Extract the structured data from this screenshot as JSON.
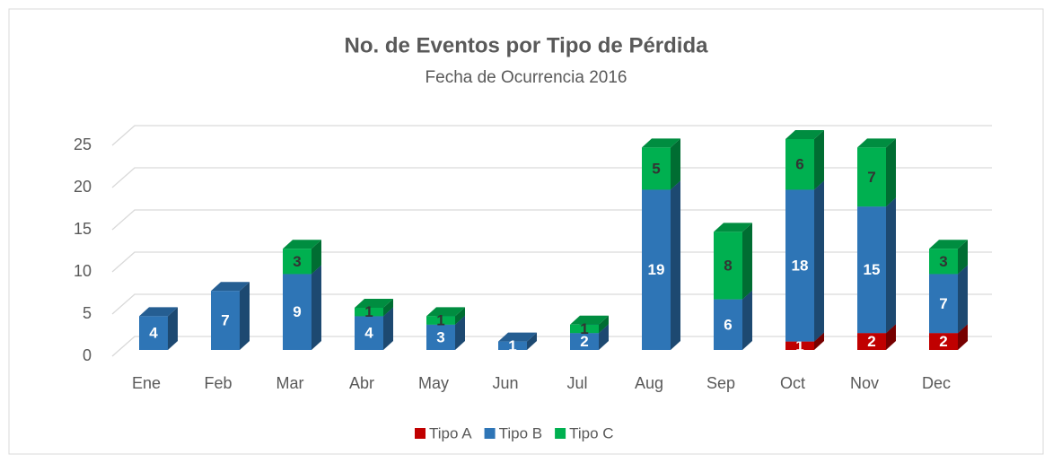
{
  "chart_data": {
    "type": "bar3d_stacked",
    "title": "No. de Eventos por Tipo de Pérdida",
    "subtitle": "Fecha de Ocurrencia 2016",
    "categories": [
      "Ene",
      "Feb",
      "Mar",
      "Abr",
      "May",
      "Jun",
      "Jul",
      "Aug",
      "Sep",
      "Oct",
      "Nov",
      "Dec"
    ],
    "series": [
      {
        "name": "Tipo A",
        "color": "#c00000",
        "values": [
          null,
          null,
          null,
          null,
          null,
          null,
          null,
          null,
          null,
          1,
          2,
          2
        ]
      },
      {
        "name": "Tipo B",
        "color": "#2e75b6",
        "values": [
          4,
          7,
          9,
          4,
          3,
          1,
          2,
          19,
          6,
          18,
          15,
          7
        ]
      },
      {
        "name": "Tipo C",
        "color": "#00b050",
        "values": [
          null,
          null,
          3,
          1,
          1,
          null,
          1,
          5,
          8,
          6,
          7,
          3
        ]
      }
    ],
    "ylim": [
      0,
      25
    ],
    "yticks": [
      0,
      5,
      10,
      15,
      20,
      25
    ],
    "grid": true,
    "legend": "bottom"
  }
}
